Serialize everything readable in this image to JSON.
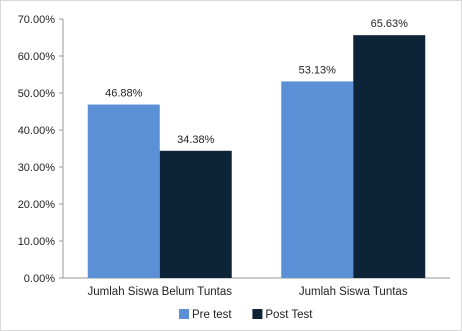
{
  "chart_data": {
    "type": "bar",
    "title": "",
    "xlabel": "",
    "ylabel": "",
    "categories": [
      "Jumlah Siswa Belum Tuntas",
      "Jumlah Siswa Tuntas"
    ],
    "series": [
      {
        "name": "Pre test",
        "values": [
          46.88,
          53.13
        ],
        "labels": [
          "46.88%",
          "53.13%"
        ],
        "color": "#5b8fd6"
      },
      {
        "name": "Post Test",
        "values": [
          34.38,
          65.63
        ],
        "labels": [
          "34.38%",
          "65.63%"
        ],
        "color": "#0d2438"
      }
    ],
    "ylim": [
      0,
      70
    ],
    "yticks": [
      0,
      10,
      20,
      30,
      40,
      50,
      60,
      70
    ],
    "ytick_labels": [
      "0.00%",
      "10.00%",
      "20.00%",
      "30.00%",
      "40.00%",
      "50.00%",
      "60.00%",
      "70.00%"
    ],
    "grid": false,
    "legend_position": "bottom"
  }
}
